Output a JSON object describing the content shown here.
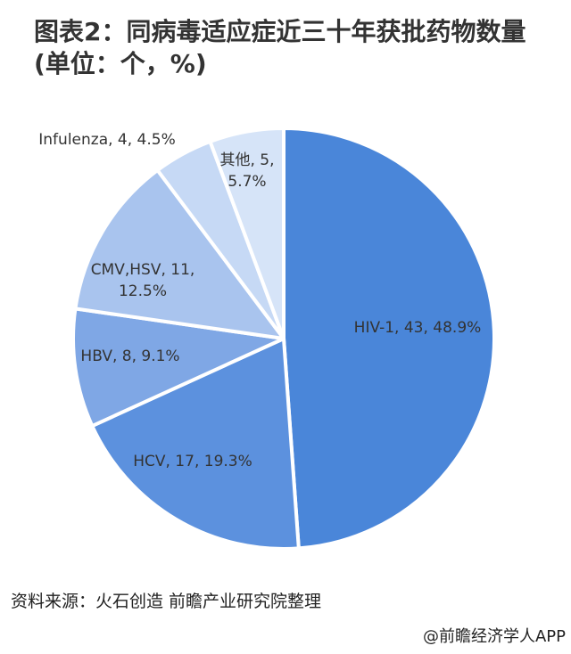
{
  "chart_data": {
    "type": "pie",
    "title": "图表2：同病毒适应症近三十年获批药物数量(单位：个，%)",
    "values": [
      43,
      17,
      8,
      11,
      4,
      5
    ],
    "value_labels": [
      "HIV-1, 43, 48.9%",
      "HCV, 17, 19.3%",
      "HBV, 8, 9.1%",
      "CMV,HSV, 11, 12.5%",
      "Infulenza, 4, 4.5%",
      "其他, 5, 5.7%"
    ],
    "colors": [
      "#4a86d9",
      "#5c91de",
      "#7fa7e5",
      "#a9c4ee",
      "#c6d9f5",
      "#d6e4f8"
    ],
    "source": "资料来源：火石创造 前瞻产业研究院整理",
    "footer": "@前瞻经济学人APP"
  }
}
